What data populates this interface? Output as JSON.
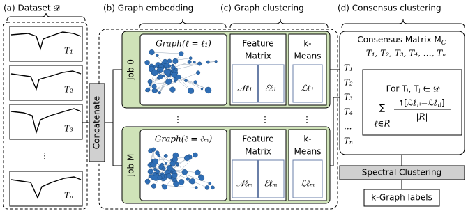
{
  "sections": [
    "(a) Dataset 𝒟",
    "(b) Graph embedding",
    "(c) Graph clustering",
    "(d) Consensus clustering"
  ],
  "dataset": {
    "series": [
      "T₁",
      "T₂",
      "T₃",
      "⋮",
      "Tₙ"
    ]
  },
  "concatenate": "Concatenate",
  "jobs": [
    {
      "label": "Job 0",
      "graph": "Graph(ℓ = ℓ₁)",
      "feature_matrix": [
        "Feature",
        "Matrix"
      ],
      "features": [
        "𝒩ℓ₁",
        "ℰℓ₁"
      ],
      "kmeans": [
        "k-",
        "Means"
      ],
      "labels": "ℒℓ₁"
    },
    {
      "label": "Job M",
      "graph": "Graph(ℓ = ℓₘ)",
      "feature_matrix": [
        "Feature",
        "Matrix"
      ],
      "features": [
        "𝒩ℓₘ",
        "ℰℓₘ"
      ],
      "kmeans": [
        "k-",
        "Means"
      ],
      "labels": "ℒℓₘ"
    }
  ],
  "ellipsis": "⋮",
  "consensus": {
    "title": "Consensus Matrix M",
    "title_sub": "C",
    "header": "T₁, T₂, T₃, T₄, …, Tₙ",
    "rows": [
      "T₁",
      "T₂",
      "T₃",
      "T₄",
      "...",
      "Tₙ"
    ],
    "condition": "For Tᵢ, Tⱼ ∈ 𝒟",
    "sum": "∑",
    "index": "ℓ∈R",
    "numerator": "𝟏[ℒℓ,ᵢ=ℒℓ,ⱼ]",
    "denominator": "|R|"
  },
  "spectral": "Spectral Clustering",
  "output": "k-Graph labels"
}
